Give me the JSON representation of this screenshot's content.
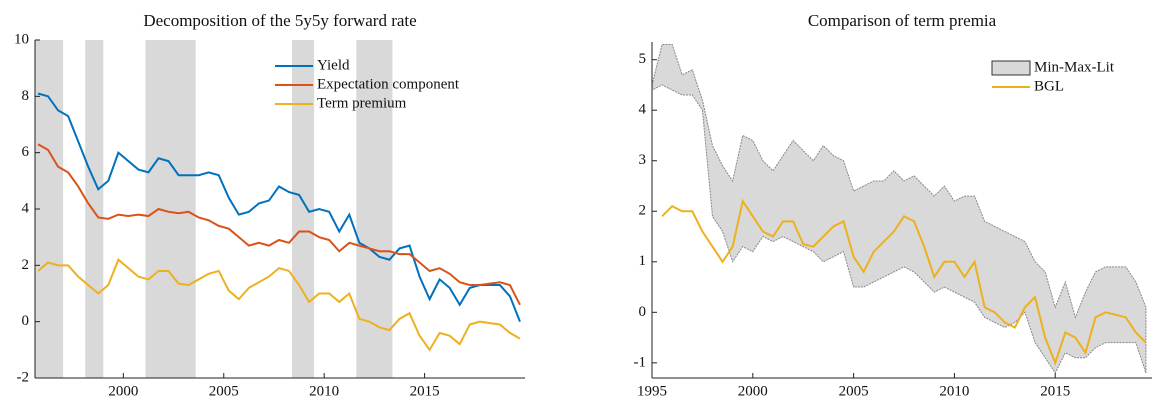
{
  "chart_data": [
    {
      "type": "line",
      "title": "Decomposition of the 5y5y forward rate",
      "x": [
        1995.75,
        1996.25,
        1996.75,
        1997.25,
        1997.75,
        1998.25,
        1998.75,
        1999.25,
        1999.75,
        2000.25,
        2000.75,
        2001.25,
        2001.75,
        2002.25,
        2002.75,
        2003.25,
        2003.75,
        2004.25,
        2004.75,
        2005.25,
        2005.75,
        2006.25,
        2006.75,
        2007.25,
        2007.75,
        2008.25,
        2008.75,
        2009.25,
        2009.75,
        2010.25,
        2010.75,
        2011.25,
        2011.75,
        2012.25,
        2012.75,
        2013.25,
        2013.75,
        2014.25,
        2014.75,
        2015.25,
        2015.75,
        2016.25,
        2016.75,
        2017.25,
        2017.75,
        2018.25,
        2018.75,
        2019.25,
        2019.75
      ],
      "series": [
        {
          "name": "Yield",
          "color": "#0072bd",
          "values": [
            8.1,
            8.0,
            7.5,
            7.3,
            6.4,
            5.5,
            4.7,
            5.0,
            6.0,
            5.7,
            5.4,
            5.3,
            5.8,
            5.7,
            5.2,
            5.2,
            5.2,
            5.3,
            5.2,
            4.4,
            3.8,
            3.9,
            4.2,
            4.3,
            4.8,
            4.6,
            4.5,
            3.9,
            4.0,
            3.9,
            3.2,
            3.8,
            2.8,
            2.6,
            2.3,
            2.2,
            2.6,
            2.7,
            1.6,
            0.8,
            1.5,
            1.2,
            0.6,
            1.2,
            1.3,
            1.3,
            1.3,
            0.9,
            0.0
          ]
        },
        {
          "name": "Expectation component",
          "color": "#d95319",
          "values": [
            6.3,
            6.1,
            5.5,
            5.3,
            4.8,
            4.2,
            3.7,
            3.65,
            3.8,
            3.75,
            3.8,
            3.75,
            4.0,
            3.9,
            3.85,
            3.9,
            3.7,
            3.6,
            3.4,
            3.3,
            3.0,
            2.7,
            2.8,
            2.7,
            2.9,
            2.8,
            3.2,
            3.2,
            3.0,
            2.9,
            2.5,
            2.8,
            2.7,
            2.6,
            2.5,
            2.5,
            2.4,
            2.4,
            2.1,
            1.8,
            1.9,
            1.7,
            1.4,
            1.3,
            1.3,
            1.35,
            1.4,
            1.3,
            0.6
          ]
        },
        {
          "name": "Term premium",
          "color": "#edb120",
          "values": [
            1.8,
            2.1,
            2.0,
            2.0,
            1.6,
            1.3,
            1.0,
            1.3,
            2.2,
            1.9,
            1.6,
            1.5,
            1.8,
            1.8,
            1.35,
            1.3,
            1.5,
            1.7,
            1.8,
            1.1,
            0.8,
            1.2,
            1.4,
            1.6,
            1.9,
            1.8,
            1.3,
            0.7,
            1.0,
            1.0,
            0.7,
            1.0,
            0.1,
            0.0,
            -0.2,
            -0.3,
            0.1,
            0.3,
            -0.5,
            -1.0,
            -0.4,
            -0.5,
            -0.8,
            -0.1,
            0.0,
            -0.05,
            -0.1,
            -0.4,
            -0.6
          ]
        }
      ],
      "shaded_regions": [
        [
          1995.6,
          1997.0
        ],
        [
          1998.1,
          1999.0
        ],
        [
          2001.1,
          2003.6
        ],
        [
          2008.4,
          2009.5
        ],
        [
          2011.6,
          2013.4
        ]
      ],
      "shade_color": "#d9d9d9",
      "xlim": [
        1995.6,
        2020.0
      ],
      "xticks": [
        2000,
        2005,
        2010,
        2015
      ],
      "ylim": [
        -2,
        10
      ],
      "yticks": [
        -2,
        0,
        2,
        4,
        6,
        8,
        10
      ],
      "legend": "top-right"
    },
    {
      "type": "line",
      "title": "Comparison of term premia",
      "x": [
        1995.0,
        1995.5,
        1996.0,
        1996.5,
        1997.0,
        1997.5,
        1998.0,
        1998.5,
        1999.0,
        1999.5,
        2000.0,
        2000.5,
        2001.0,
        2001.5,
        2002.0,
        2002.5,
        2003.0,
        2003.5,
        2004.0,
        2004.5,
        2005.0,
        2005.5,
        2006.0,
        2006.5,
        2007.0,
        2007.5,
        2008.0,
        2008.5,
        2009.0,
        2009.5,
        2010.0,
        2010.5,
        2011.0,
        2011.5,
        2012.0,
        2012.5,
        2013.0,
        2013.5,
        2014.0,
        2014.5,
        2015.0,
        2015.5,
        2016.0,
        2016.5,
        2017.0,
        2017.5,
        2018.0,
        2018.5,
        2019.0,
        2019.5
      ],
      "series": [
        {
          "name": "Min-Max-Lit",
          "color": "#d9d9d9",
          "kind": "band",
          "upper": [
            4.5,
            5.3,
            5.3,
            4.7,
            4.8,
            4.2,
            3.3,
            2.9,
            2.6,
            3.5,
            3.4,
            3.0,
            2.8,
            3.1,
            3.4,
            3.2,
            3.0,
            3.3,
            3.1,
            3.0,
            2.4,
            2.5,
            2.6,
            2.6,
            2.8,
            2.6,
            2.7,
            2.5,
            2.3,
            2.5,
            2.2,
            2.3,
            2.3,
            1.8,
            1.7,
            1.6,
            1.5,
            1.4,
            1.0,
            0.8,
            0.1,
            0.6,
            -0.1,
            0.4,
            0.8,
            0.9,
            0.9,
            0.9,
            0.6,
            0.1
          ],
          "lower": [
            4.4,
            4.5,
            4.4,
            4.3,
            4.3,
            4.0,
            1.9,
            1.6,
            1.0,
            1.3,
            1.2,
            1.5,
            1.4,
            1.5,
            1.4,
            1.3,
            1.2,
            1.0,
            1.1,
            1.2,
            0.5,
            0.5,
            0.6,
            0.7,
            0.8,
            0.9,
            0.8,
            0.6,
            0.4,
            0.5,
            0.4,
            0.3,
            0.2,
            -0.1,
            -0.2,
            -0.3,
            -0.2,
            0.0,
            -0.6,
            -0.9,
            -1.2,
            -0.8,
            -0.9,
            -0.9,
            -0.7,
            -0.6,
            -0.6,
            -0.6,
            -0.6,
            -1.2
          ]
        },
        {
          "name": "BGL",
          "color": "#edb120",
          "values": [
            null,
            1.9,
            2.1,
            2.0,
            2.0,
            1.6,
            1.3,
            1.0,
            1.3,
            2.2,
            1.9,
            1.6,
            1.5,
            1.8,
            1.8,
            1.35,
            1.3,
            1.5,
            1.7,
            1.8,
            1.1,
            0.8,
            1.2,
            1.4,
            1.6,
            1.9,
            1.8,
            1.3,
            0.7,
            1.0,
            1.0,
            0.7,
            1.0,
            0.1,
            0.0,
            -0.2,
            -0.3,
            0.1,
            0.3,
            -0.5,
            -1.0,
            -0.4,
            -0.5,
            -0.8,
            -0.1,
            0.0,
            -0.05,
            -0.1,
            -0.4,
            -0.6
          ]
        }
      ],
      "xlim": [
        1995.0,
        2019.8
      ],
      "xticks": [
        1995,
        2000,
        2005,
        2010,
        2015
      ],
      "ylim": [
        -1.3,
        5.35
      ],
      "yticks": [
        -1,
        0,
        1,
        2,
        3,
        4,
        5
      ],
      "legend": "top-right"
    }
  ]
}
